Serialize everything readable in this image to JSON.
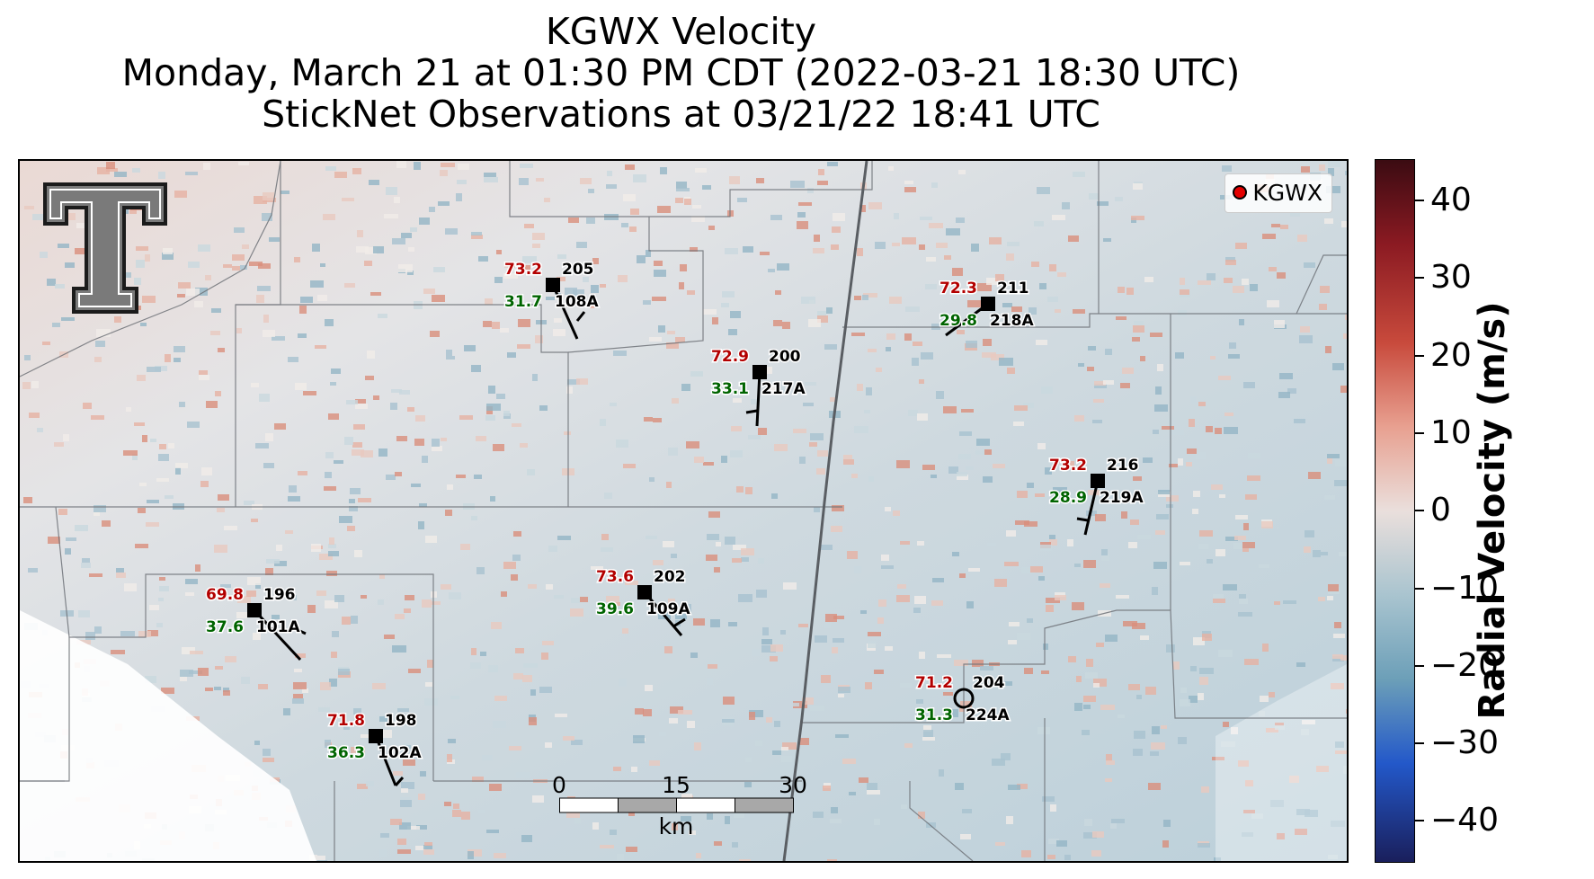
{
  "title": {
    "line1": "KGWX Velocity",
    "line2": "Monday, March 21 at 01:30 PM CDT (2022-03-21 18:30 UTC)",
    "line3": "StickNet Observations at 03/21/22 18:41 UTC"
  },
  "legend": {
    "label": "KGWX",
    "marker_color": "#e30000"
  },
  "colorbar": {
    "label": "Radial Velocity (m/s)",
    "ticks": [
      "40",
      "30",
      "20",
      "10",
      "0",
      "−10",
      "−20",
      "−30",
      "−40"
    ],
    "colormap": [
      "#3b0b12",
      "#8b1a22",
      "#c84a3c",
      "#e8a090",
      "#eadfdc",
      "#a9c4cf",
      "#6c9fb8",
      "#2358c9",
      "#1a1f5c"
    ]
  },
  "scalebar": {
    "labels": [
      "0",
      "15",
      "30"
    ],
    "unit": "km"
  },
  "colors": {
    "temperature": "#b30000",
    "dewpoint": "#006400",
    "station_id": "#000000"
  },
  "stations": [
    {
      "id": "205",
      "probe": "108A",
      "temp": "73.2",
      "dew": "31.7"
    },
    {
      "id": "211",
      "probe": "218A",
      "temp": "72.3",
      "dew": "29.8"
    },
    {
      "id": "200",
      "probe": "217A",
      "temp": "72.9",
      "dew": "33.1"
    },
    {
      "id": "216",
      "probe": "219A",
      "temp": "73.2",
      "dew": "28.9"
    },
    {
      "id": "196",
      "probe": "101A",
      "temp": "69.8",
      "dew": "37.6"
    },
    {
      "id": "202",
      "probe": "109A",
      "temp": "73.6",
      "dew": "39.6"
    },
    {
      "id": "204",
      "probe": "224A",
      "temp": "71.2",
      "dew": "31.3"
    },
    {
      "id": "198",
      "probe": "102A",
      "temp": "71.8",
      "dew": "36.3"
    }
  ]
}
